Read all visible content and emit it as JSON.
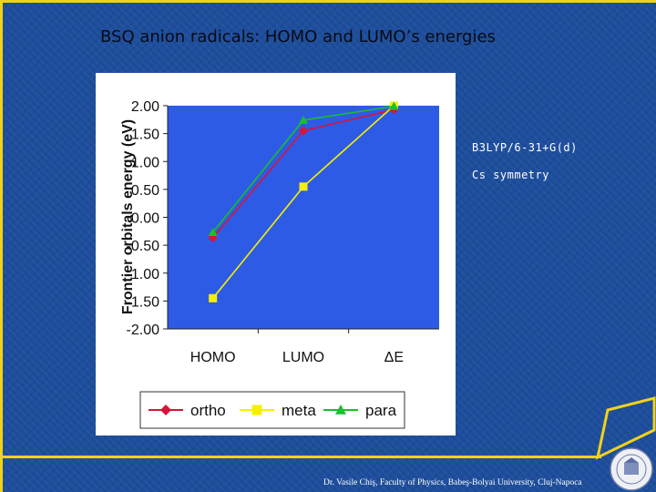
{
  "slide": {
    "title": "BSQ anion radicals: HOMO and LUMO’s energies",
    "notes": [
      "B3LYP/6-31+G(d)",
      "Cs symmetry"
    ],
    "footer": "Dr. Vasile Chiş, Faculty of Physics, Babeş-Bolyai University, Cluj-Napoca",
    "colors": {
      "background": "#1d4e9c",
      "frame": "#f1d21a",
      "plot_area": "#2e5be5"
    }
  },
  "chart_data": {
    "type": "line",
    "categories": [
      "HOMO",
      "LUMO",
      "ΔE"
    ],
    "series": [
      {
        "name": "ortho",
        "values": [
          -0.37,
          1.55,
          1.93
        ],
        "color": "#d8143a",
        "marker": "diamond"
      },
      {
        "name": "meta",
        "values": [
          -1.45,
          0.55,
          2.0
        ],
        "color": "#f5f000",
        "marker": "square"
      },
      {
        "name": "para",
        "values": [
          -0.27,
          1.74,
          1.99
        ],
        "color": "#18c02a",
        "marker": "triangle"
      }
    ],
    "ylabel": "Frontier orbitals energy (eV)",
    "ylim": [
      -2.0,
      2.0
    ],
    "yticks": [
      "2.00",
      "1.50",
      "1.00",
      "0.50",
      "0.00",
      "-0.50",
      "-1.00",
      "-1.50",
      "-2.00"
    ],
    "grid": false,
    "legend_position": "bottom"
  }
}
